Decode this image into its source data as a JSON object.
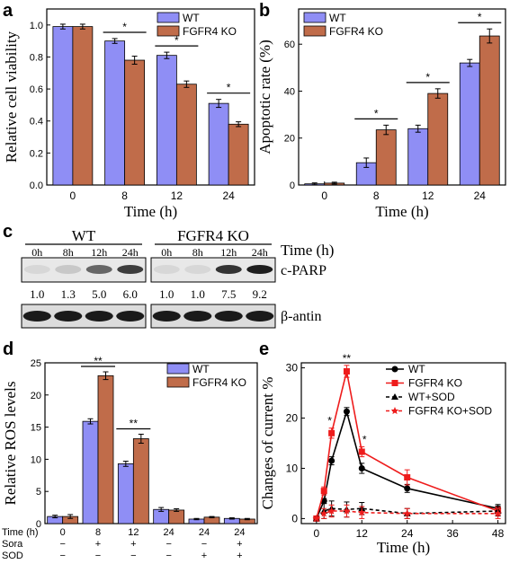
{
  "colors": {
    "wt": "#8f8ef5",
    "ko": "#c06c4a",
    "wt_line": "#000000",
    "ko_line": "#ee1c1c"
  },
  "panels": {
    "a": "a",
    "b": "b",
    "c": "c",
    "d": "d",
    "e": "e"
  },
  "chart_data": [
    {
      "id": "a",
      "type": "bar",
      "title": "",
      "xlabel": "Time (h)",
      "ylabel": "Relative cell viability",
      "categories": [
        "0",
        "8",
        "12",
        "24"
      ],
      "ylim": [
        0,
        1.1
      ],
      "yticks": [
        "0.0",
        "0.2",
        "0.4",
        "0.6",
        "0.8",
        "1.0"
      ],
      "series": [
        {
          "name": "WT",
          "values": [
            0.99,
            0.9,
            0.81,
            0.51
          ],
          "errors": [
            0.015,
            0.015,
            0.02,
            0.025
          ]
        },
        {
          "name": "FGFR4 KO",
          "values": [
            0.99,
            0.78,
            0.63,
            0.38
          ],
          "errors": [
            0.015,
            0.025,
            0.02,
            0.015
          ]
        }
      ],
      "significance": [
        {
          "label": "*",
          "category": 1
        },
        {
          "label": "*",
          "category": 2
        },
        {
          "label": "*",
          "category": 3
        }
      ],
      "legend": "top-right"
    },
    {
      "id": "b",
      "type": "bar",
      "title": "",
      "xlabel": "Time (h)",
      "ylabel": "Apoptotic rate (%)",
      "categories": [
        "0",
        "8",
        "12",
        "24"
      ],
      "ylim": [
        0,
        75
      ],
      "yticks": [
        "0",
        "20",
        "40",
        "60"
      ],
      "series": [
        {
          "name": "WT",
          "values": [
            0.5,
            9.5,
            24,
            52
          ],
          "errors": [
            0.4,
            2,
            1.5,
            1.5
          ]
        },
        {
          "name": "FGFR4 KO",
          "values": [
            0.8,
            23.5,
            39,
            63.5
          ],
          "errors": [
            0.4,
            2,
            2,
            3
          ]
        }
      ],
      "significance": [
        {
          "label": "*",
          "category": 1
        },
        {
          "label": "*",
          "category": 2
        },
        {
          "label": "*",
          "category": 3
        }
      ],
      "legend": "top-left"
    },
    {
      "id": "d",
      "type": "bar",
      "title": "",
      "xlabel": "",
      "ylabel": "Relative ROS levels",
      "categories": [
        "0",
        "8",
        "12",
        "24",
        "24",
        "24"
      ],
      "ylim": [
        0,
        25
      ],
      "yticks": [
        "0",
        "5",
        "10",
        "15",
        "20",
        "25"
      ],
      "series": [
        {
          "name": "WT",
          "values": [
            1.1,
            15.9,
            9.3,
            2.2,
            0.7,
            0.8
          ],
          "errors": [
            0.2,
            0.4,
            0.4,
            0.3,
            0.1,
            0.1
          ]
        },
        {
          "name": "FGFR4 KO",
          "values": [
            1.1,
            23.0,
            13.2,
            2.1,
            1.0,
            0.7
          ],
          "errors": [
            0.3,
            0.6,
            0.7,
            0.2,
            0.1,
            0.1
          ]
        }
      ],
      "significance": [
        {
          "label": "**",
          "category": 1
        },
        {
          "label": "**",
          "category": 2
        }
      ],
      "table": {
        "rows": [
          {
            "label": "Time (h)",
            "cells": [
              "0",
              "8",
              "12",
              "24",
              "24",
              "24"
            ]
          },
          {
            "label": "Sora",
            "cells": [
              "−",
              "+",
              "+",
              "−",
              "−",
              "+"
            ]
          },
          {
            "label": "SOD",
            "cells": [
              "−",
              "−",
              "−",
              "−",
              "+",
              "+"
            ]
          }
        ]
      },
      "legend": "top-right"
    },
    {
      "id": "e",
      "type": "line",
      "title": "",
      "xlabel": "Time (h)",
      "ylabel": "Changes of current %",
      "xlim": [
        -4,
        50
      ],
      "ylim": [
        -1,
        31
      ],
      "xticks": [
        "0",
        "12",
        "24",
        "36",
        "48"
      ],
      "yticks": [
        "0",
        "10",
        "20",
        "30"
      ],
      "series": [
        {
          "name": "WT",
          "style": "solid",
          "marker": "circle",
          "x": [
            0,
            2,
            4,
            8,
            12,
            24,
            48
          ],
          "y": [
            0,
            3.5,
            11.5,
            21.3,
            10,
            6,
            2
          ],
          "errors": [
            0.3,
            0.5,
            0.8,
            0.8,
            1,
            0.8,
            0.8
          ]
        },
        {
          "name": "FGFR4 KO",
          "style": "solid",
          "marker": "square",
          "x": [
            0,
            2,
            4,
            8,
            12,
            24,
            48
          ],
          "y": [
            0,
            5.5,
            17,
            29.3,
            13.3,
            8.2,
            1.5
          ],
          "errors": [
            0.3,
            0.8,
            1,
            1.2,
            1,
            1.5,
            0.8
          ]
        },
        {
          "name": "WT+SOD",
          "style": "dashed",
          "marker": "triangle",
          "x": [
            0,
            2,
            4,
            8,
            12,
            24,
            48
          ],
          "y": [
            0,
            1.5,
            2,
            1.8,
            2,
            1,
            1.5
          ],
          "errors": [
            0.3,
            1.5,
            1.5,
            1.5,
            1.2,
            1,
            1
          ]
        },
        {
          "name": "FGFR4 KO+SOD",
          "style": "dashed",
          "marker": "star",
          "x": [
            0,
            2,
            4,
            8,
            12,
            24,
            48
          ],
          "y": [
            0,
            1,
            1.5,
            1.5,
            1.2,
            1,
            1
          ],
          "errors": [
            0.3,
            1,
            1.2,
            1.2,
            1.2,
            1,
            1
          ]
        }
      ],
      "significance": [
        {
          "label": "*",
          "x": 4
        },
        {
          "label": "**",
          "x": 8
        },
        {
          "label": "*",
          "x": 12
        }
      ],
      "legend": "top-right"
    }
  ],
  "western_blot": {
    "groups": [
      {
        "label": "WT",
        "lanes": [
          "0h",
          "8h",
          "12h",
          "24h"
        ],
        "cparp_values": [
          "1.0",
          "1.3",
          "5.0",
          "6.0"
        ],
        "cparp_intensity": [
          0.05,
          0.12,
          0.6,
          0.8
        ]
      },
      {
        "label": "FGFR4 KO",
        "lanes": [
          "0h",
          "8h",
          "12h",
          "24h"
        ],
        "cparp_values": [
          "1.0",
          "1.0",
          "7.5",
          "9.2"
        ],
        "cparp_intensity": [
          0.05,
          0.05,
          0.85,
          0.95
        ]
      }
    ],
    "time_label": "Time (h)",
    "row_labels": {
      "cparp": "c-PARP",
      "actin": "β-antin"
    }
  }
}
